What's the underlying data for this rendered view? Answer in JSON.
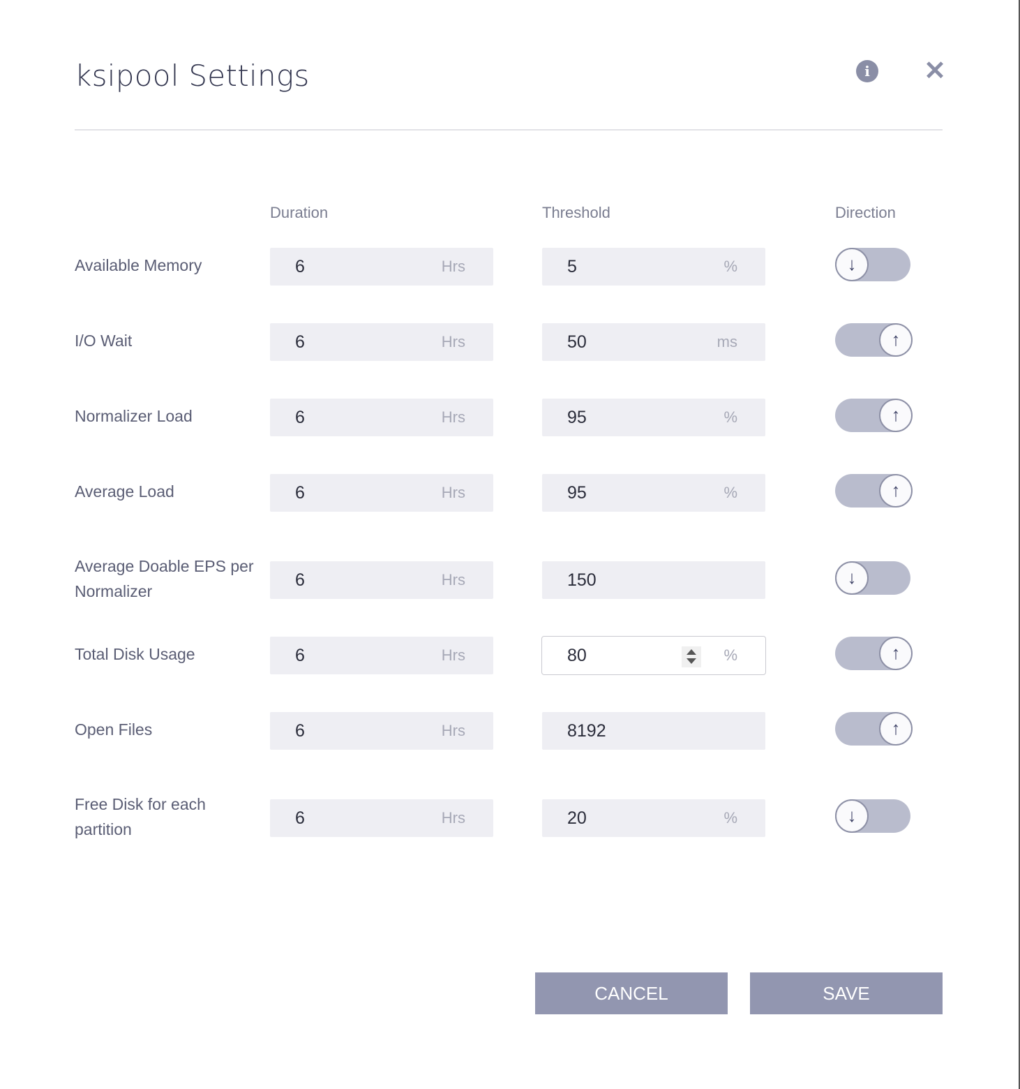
{
  "dialog": {
    "title": "ksipool Settings",
    "info_icon": "info-circle-icon",
    "close_icon": "close-x-icon"
  },
  "columns": {
    "duration": "Duration",
    "threshold": "Threshold",
    "direction": "Direction"
  },
  "rows": [
    {
      "label": "Available Memory",
      "duration": "6",
      "duration_unit": "Hrs",
      "threshold": "5",
      "threshold_unit": "%",
      "direction": "down",
      "glyph": "↓"
    },
    {
      "label": "I/O Wait",
      "duration": "6",
      "duration_unit": "Hrs",
      "threshold": "50",
      "threshold_unit": "ms",
      "direction": "up",
      "glyph": "↑"
    },
    {
      "label": "Normalizer Load",
      "duration": "6",
      "duration_unit": "Hrs",
      "threshold": "95",
      "threshold_unit": "%",
      "direction": "up",
      "glyph": "↑"
    },
    {
      "label": "Average Load",
      "duration": "6",
      "duration_unit": "Hrs",
      "threshold": "95",
      "threshold_unit": "%",
      "direction": "up",
      "glyph": "↑"
    },
    {
      "label": "Average Doable EPS per Normalizer",
      "duration": "6",
      "duration_unit": "Hrs",
      "threshold": "150",
      "threshold_unit": "",
      "direction": "down",
      "glyph": "↓"
    },
    {
      "label": "Total Disk Usage",
      "duration": "6",
      "duration_unit": "Hrs",
      "threshold": "80",
      "threshold_unit": "%",
      "direction": "up",
      "glyph": "↑",
      "focused": true
    },
    {
      "label": "Open Files",
      "duration": "6",
      "duration_unit": "Hrs",
      "threshold": "8192",
      "threshold_unit": "",
      "direction": "up",
      "glyph": "↑"
    },
    {
      "label": "Free Disk for each partition",
      "duration": "6",
      "duration_unit": "Hrs",
      "threshold": "20",
      "threshold_unit": "%",
      "direction": "down",
      "glyph": "↓"
    }
  ],
  "buttons": {
    "cancel": "CANCEL",
    "save": "SAVE"
  },
  "colors": {
    "button": "#9296b0",
    "toggle_track": "#b9bccd",
    "field_bg": "#eeeef3",
    "icon": "#8a8ea6"
  }
}
